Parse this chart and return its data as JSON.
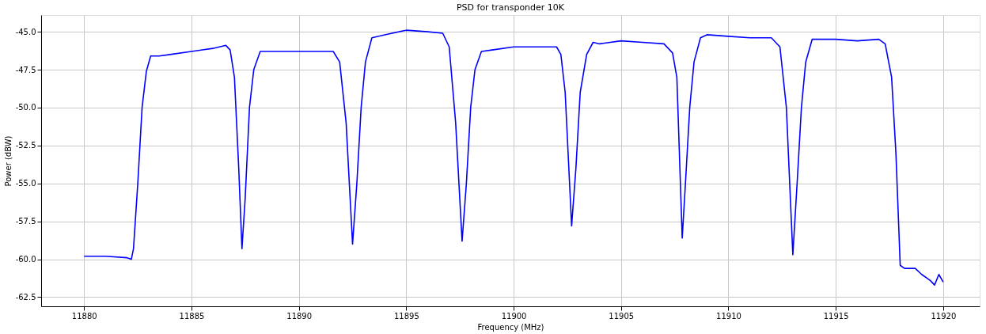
{
  "chart_data": {
    "type": "line",
    "title": "PSD for transponder 10K",
    "xlabel": "Frequency (MHz)",
    "ylabel": "Power (dBW)",
    "xlim": [
      11878,
      11921.7
    ],
    "xticks": [
      11880,
      11885,
      11890,
      11895,
      11900,
      11905,
      11910,
      11915,
      11920
    ],
    "ylim": [
      -63.1,
      -43.9
    ],
    "yticks": [
      {
        "value": -62.5,
        "label": "-62.5"
      },
      {
        "value": -60,
        "label": "-60.0"
      },
      {
        "value": -57.5,
        "label": "-57.5"
      },
      {
        "value": -55,
        "label": "-55.0"
      },
      {
        "value": -52.5,
        "label": "-52.5"
      },
      {
        "value": -50,
        "label": "-50.0"
      },
      {
        "value": -47.5,
        "label": "-47.5"
      },
      {
        "value": -45,
        "label": "-45.0"
      }
    ],
    "grid": true,
    "marker": "none",
    "line_style": "solid",
    "series": [
      {
        "color": "#0000ff",
        "x": [
          11880,
          11881,
          11882,
          11882.2,
          11882.3,
          11882.5,
          11882.7,
          11882.9,
          11883.1,
          11883.5,
          11884,
          11885,
          11886,
          11886.6,
          11886.8,
          11887,
          11887.2,
          11887.35,
          11887.5,
          11887.7,
          11887.9,
          11888.2,
          11889,
          11890,
          11891,
          11891.6,
          11891.9,
          11892.2,
          11892.5,
          11892.7,
          11892.9,
          11893.1,
          11893.4,
          11894,
          11895,
          11896,
          11896.7,
          11897,
          11897.3,
          11897.6,
          11897.8,
          11898,
          11898.2,
          11898.5,
          11899,
          11900,
          11901,
          11902,
          11902.2,
          11902.4,
          11902.7,
          11902.9,
          11903.1,
          11903.4,
          11903.7,
          11904,
          11905,
          11906,
          11907,
          11907.4,
          11907.6,
          11907.85,
          11908,
          11908.2,
          11908.4,
          11908.7,
          11909,
          11910,
          11911,
          11912,
          11912.4,
          11912.7,
          11913,
          11913.2,
          11913.4,
          11913.6,
          11913.9,
          11914.5,
          11915,
          11916,
          11917,
          11917.3,
          11917.6,
          11917.8,
          11918,
          11918.2,
          11918.5,
          11918.7,
          11919,
          11919.4,
          11919.6,
          11919.8,
          11920
        ],
        "values": [
          -59.8,
          -59.8,
          -59.9,
          -60.0,
          -59.3,
          -55,
          -50,
          -47.6,
          -46.6,
          -46.6,
          -46.5,
          -46.3,
          -46.1,
          -45.9,
          -46.2,
          -48,
          -54,
          -59.3,
          -56,
          -50,
          -47.5,
          -46.3,
          -46.3,
          -46.3,
          -46.3,
          -46.3,
          -47,
          -51,
          -59.0,
          -55,
          -50,
          -47,
          -45.4,
          -45.2,
          -44.9,
          -45.0,
          -45.1,
          -46,
          -51,
          -58.8,
          -55,
          -50,
          -47.5,
          -46.3,
          -46.2,
          -46.0,
          -46.0,
          -46.0,
          -46.5,
          -49,
          -57.8,
          -54,
          -49,
          -46.5,
          -45.7,
          -45.8,
          -45.6,
          -45.7,
          -45.8,
          -46.4,
          -48,
          -58.6,
          -55,
          -50,
          -47,
          -45.4,
          -45.2,
          -45.3,
          -45.4,
          -45.4,
          -46,
          -50,
          -59.7,
          -55,
          -50,
          -47,
          -45.5,
          -45.5,
          -45.5,
          -45.6,
          -45.5,
          -45.8,
          -48,
          -53,
          -60.4,
          -60.6,
          -60.6,
          -60.6,
          -61.0,
          -61.4,
          -61.7,
          -61.0,
          -61.5
        ]
      }
    ]
  }
}
